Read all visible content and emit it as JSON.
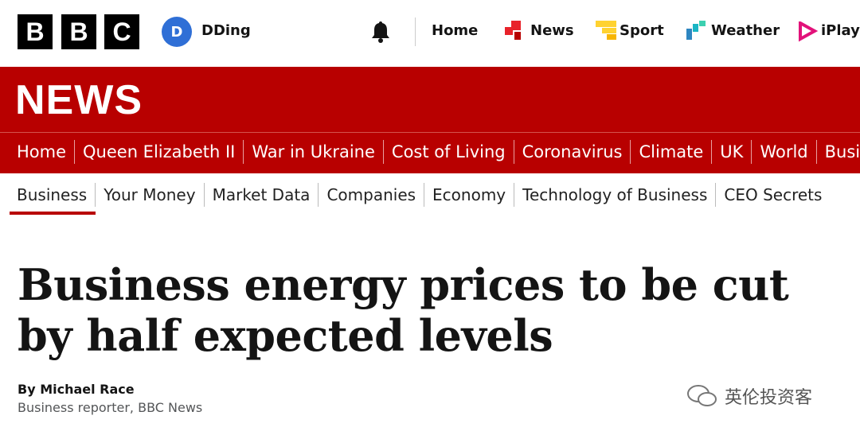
{
  "header": {
    "logo": [
      "B",
      "B",
      "C"
    ],
    "avatar": "D",
    "username": "DDing",
    "nav": [
      "Home",
      "News",
      "Sport",
      "Weather",
      "iPlayer"
    ]
  },
  "banner": {
    "title": "NEWS",
    "nav": [
      "Home",
      "Queen Elizabeth II",
      "War in Ukraine",
      "Cost of Living",
      "Coronavirus",
      "Climate",
      "UK",
      "World",
      "Business"
    ]
  },
  "subnav": [
    "Business",
    "Your Money",
    "Market Data",
    "Companies",
    "Economy",
    "Technology of Business",
    "CEO Secrets"
  ],
  "article": {
    "headline": "Business energy prices to be cut by half expected levels",
    "author": "By Michael Race",
    "role": "Business reporter, BBC News"
  },
  "watermark": "英伦投资客"
}
